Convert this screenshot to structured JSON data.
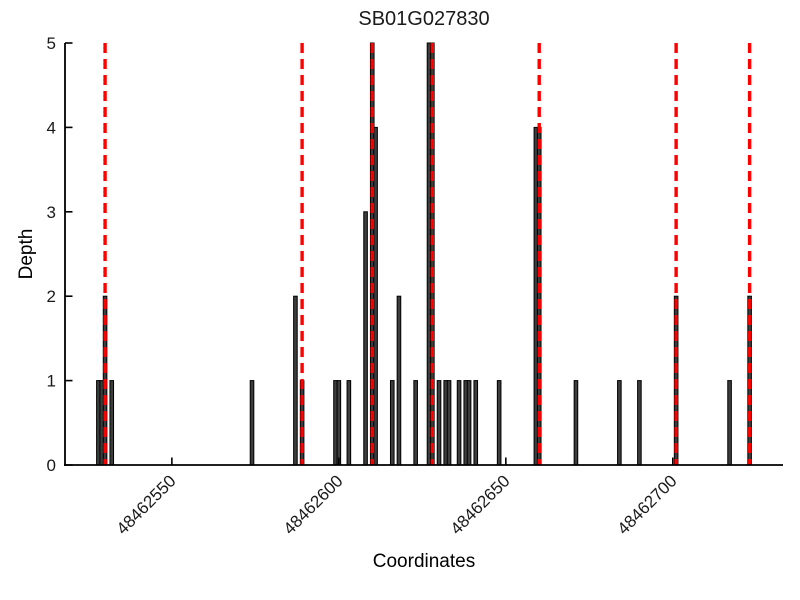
{
  "figure": {
    "title": "SB01G027830",
    "xlabel": "Coordinates",
    "ylabel": "Depth"
  },
  "chart_data": {
    "type": "bar",
    "title": "SB01G027830",
    "xlabel": "Coordinates",
    "ylabel": "Depth",
    "xlim": [
      48462518,
      48462733
    ],
    "ylim": [
      0,
      5
    ],
    "xticks": [
      48462550,
      48462600,
      48462650,
      48462700
    ],
    "xtick_labels": [
      "48462550",
      "48462600",
      "48462650",
      "48462700"
    ],
    "yticks": [
      0,
      1,
      2,
      3,
      4,
      5
    ],
    "ytick_labels": [
      "0",
      "1",
      "2",
      "3",
      "4",
      "5"
    ],
    "grid": false,
    "legend_position": "none",
    "bars": [
      [
        48462528,
        1
      ],
      [
        48462529,
        1
      ],
      [
        48462530,
        2
      ],
      [
        48462532,
        1
      ],
      [
        48462574,
        1
      ],
      [
        48462587,
        2
      ],
      [
        48462589,
        1
      ],
      [
        48462599,
        1
      ],
      [
        48462600,
        1
      ],
      [
        48462603,
        1
      ],
      [
        48462608,
        3
      ],
      [
        48462610,
        5
      ],
      [
        48462611,
        4
      ],
      [
        48462616,
        1
      ],
      [
        48462618,
        2
      ],
      [
        48462623,
        1
      ],
      [
        48462627,
        5
      ],
      [
        48462628,
        5
      ],
      [
        48462630,
        1
      ],
      [
        48462632,
        1
      ],
      [
        48462633,
        1
      ],
      [
        48462636,
        1
      ],
      [
        48462638,
        1
      ],
      [
        48462639,
        1
      ],
      [
        48462641,
        1
      ],
      [
        48462648,
        1
      ],
      [
        48462659,
        4
      ],
      [
        48462660,
        4
      ],
      [
        48462671,
        1
      ],
      [
        48462684,
        1
      ],
      [
        48462690,
        1
      ],
      [
        48462701,
        2
      ],
      [
        48462717,
        1
      ],
      [
        48462723,
        2
      ]
    ],
    "vlines": {
      "style": "dashed",
      "x": [
        48462530,
        48462589,
        48462610,
        48462628,
        48462660,
        48462701,
        48462723
      ]
    },
    "colors": {
      "bar_fill": "#3d3d3d",
      "bar_edge": "#000000",
      "vline": "#ff0000",
      "axis": "#000000",
      "text": "#1a1a1a",
      "background": "#ffffff"
    }
  }
}
